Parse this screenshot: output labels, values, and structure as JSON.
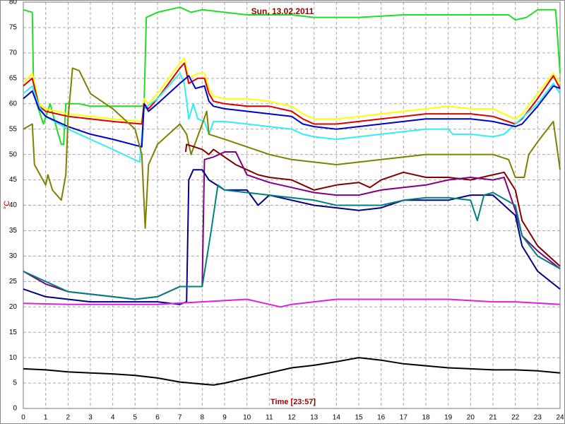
{
  "chart_data": {
    "type": "line",
    "title": "Sun, 13.02.2011",
    "x_label": "Time [23:57]",
    "y_label": "°C",
    "xlim": [
      0,
      24
    ],
    "ylim": [
      0,
      80
    ],
    "xticks": [
      0,
      1,
      2,
      3,
      4,
      5,
      6,
      7,
      8,
      9,
      10,
      11,
      12,
      13,
      14,
      15,
      16,
      17,
      18,
      19,
      20,
      21,
      22,
      23,
      24
    ],
    "yticks": [
      0,
      5,
      10,
      15,
      20,
      25,
      30,
      35,
      40,
      45,
      50,
      55,
      60,
      65,
      70,
      75,
      80
    ],
    "grid": true,
    "series": [
      {
        "color": "#22dd22",
        "x": [
          0,
          0.4,
          0.45,
          0.6,
          0.9,
          1.2,
          1.5,
          1.7,
          1.8,
          1.9,
          2.5,
          3,
          4,
          5.3,
          5.4,
          5.5,
          6,
          7,
          7.5,
          8,
          9,
          10,
          12,
          13,
          15,
          17,
          19,
          21,
          21.7,
          22,
          22.5,
          23,
          23.8,
          24
        ],
        "values": [
          78.5,
          78,
          65,
          60,
          56,
          60,
          55,
          52,
          52,
          60,
          60,
          59.5,
          59.5,
          59.5,
          60,
          77,
          78,
          79,
          78,
          78.5,
          78,
          77.5,
          77.5,
          77,
          77,
          77.5,
          77.5,
          77.5,
          77.5,
          76.5,
          77,
          78.5,
          78.5,
          66
        ]
      },
      {
        "color": "#ffff00",
        "x": [
          0,
          0.4,
          0.7,
          1,
          2,
          3,
          4,
          5.3,
          5.4,
          5.6,
          6,
          7,
          7.2,
          7.4,
          7.8,
          8.1,
          8.3,
          8.5,
          9,
          10,
          11,
          12,
          12.5,
          13,
          14,
          15,
          16,
          17,
          18,
          19,
          20,
          21,
          22,
          22.3,
          23,
          23.7,
          24
        ],
        "values": [
          64,
          66,
          60,
          59,
          58,
          57.5,
          57,
          56.5,
          61,
          60,
          62,
          68,
          69,
          65,
          66,
          66,
          63,
          61.5,
          61,
          61,
          60.5,
          59.5,
          58,
          57,
          57,
          57.5,
          58,
          58.5,
          59,
          59.5,
          59,
          59,
          57,
          58,
          62,
          66,
          64
        ]
      },
      {
        "color": "#dd0000",
        "x": [
          0,
          0.4,
          0.7,
          1,
          2,
          3,
          4,
          5.3,
          5.4,
          5.6,
          6,
          7,
          7.2,
          7.4,
          7.8,
          8.1,
          8.3,
          8.5,
          9,
          10,
          11,
          12,
          12.5,
          13,
          14,
          15,
          16,
          17,
          18,
          19,
          20,
          21,
          22,
          22.3,
          23,
          23.7,
          24
        ],
        "values": [
          63.5,
          65,
          59.5,
          58.5,
          57.5,
          57,
          56.5,
          56,
          60,
          59,
          61,
          67,
          68,
          64,
          65,
          65,
          62,
          60.5,
          60,
          59.5,
          59.5,
          58.5,
          57,
          56,
          56,
          56.5,
          57,
          57.5,
          58,
          58,
          58,
          57.5,
          56,
          57,
          61,
          65.5,
          63
        ]
      },
      {
        "color": "#33eeee",
        "x": [
          0,
          0.4,
          0.7,
          1,
          2,
          3,
          4,
          5.2,
          5.4,
          6,
          7,
          7.2,
          7.4,
          7.6,
          7.8,
          8.1,
          8.3,
          8.5,
          9,
          10,
          11,
          12,
          12.5,
          13,
          14,
          15,
          16,
          17,
          18,
          19,
          19.2,
          20,
          21,
          21.5,
          22,
          23,
          23.7,
          24
        ],
        "values": [
          62,
          63.5,
          59.5,
          57.5,
          55,
          53,
          51,
          48.5,
          59,
          61,
          66,
          64,
          57,
          60,
          57,
          56.5,
          54,
          56.5,
          56.5,
          56,
          55.5,
          55,
          54,
          53.5,
          53,
          53.5,
          54,
          54.5,
          55,
          55,
          54,
          54,
          53.5,
          54,
          56,
          60,
          64,
          62
        ]
      },
      {
        "color": "#0000cc",
        "x": [
          0,
          0.4,
          0.7,
          1,
          2,
          3,
          4,
          5.3,
          5.4,
          5.6,
          6,
          7,
          7.4,
          7.7,
          8.1,
          8.3,
          8.5,
          9,
          10,
          11,
          12,
          12.5,
          13,
          14,
          15,
          16,
          17,
          18,
          19,
          20,
          21,
          22,
          22.3,
          23,
          23.7,
          24
        ],
        "values": [
          61,
          62.5,
          59,
          57.5,
          55.5,
          54,
          53,
          51.5,
          60,
          58.5,
          60,
          64,
          65.5,
          63,
          63.5,
          60.5,
          59.5,
          59,
          58.5,
          58,
          57.5,
          56,
          55.5,
          55,
          55.5,
          56,
          56.5,
          57,
          57,
          57,
          56.5,
          55.5,
          56,
          59.5,
          63.5,
          63
        ]
      },
      {
        "color": "#808000",
        "x": [
          0,
          0.4,
          0.5,
          1,
          1.1,
          1.3,
          1.7,
          1.9,
          2,
          2.2,
          2.5,
          3,
          4,
          5,
          5.3,
          5.45,
          5.6,
          6,
          7,
          7.3,
          7.5,
          8,
          8.2,
          8.3,
          9,
          10,
          11,
          12,
          13,
          14,
          15,
          16,
          17,
          18,
          19,
          20,
          21,
          21.7,
          22,
          22.4,
          22.6,
          23,
          23.7,
          24
        ],
        "values": [
          55,
          56,
          48,
          44,
          46,
          43,
          41,
          46,
          57,
          67,
          66.5,
          62,
          59,
          55,
          50,
          35.5,
          48,
          52,
          56,
          54,
          50,
          56,
          58.5,
          54,
          53,
          51.5,
          50,
          49,
          48.5,
          48,
          48.5,
          49,
          49.5,
          50,
          50,
          50,
          50,
          49,
          45.5,
          45.5,
          50,
          52.5,
          56.5,
          47
        ]
      },
      {
        "color": "#800000",
        "x": [
          7.26,
          7.3,
          8,
          8.3,
          8.5,
          9,
          9.5,
          10,
          10.5,
          11,
          12,
          12.5,
          13,
          14,
          15,
          15.5,
          16,
          17,
          18,
          19,
          20,
          21,
          21.5,
          22,
          22.3,
          23,
          24
        ],
        "values": [
          50.5,
          52,
          51,
          50,
          51,
          49.5,
          48,
          47,
          46,
          45.5,
          45,
          44,
          43,
          44,
          44.5,
          43.5,
          45,
          46.5,
          45.5,
          45.5,
          45,
          46,
          46.5,
          43,
          37,
          32,
          28
        ]
      },
      {
        "color": "#800080",
        "x": [
          0,
          1,
          2,
          3,
          4,
          5,
          6,
          7,
          8,
          8.1,
          8.5,
          9,
          9.5,
          10,
          11,
          12,
          13,
          14,
          15,
          16,
          17,
          18,
          19,
          20,
          21,
          21.5,
          22,
          22.3,
          23,
          24
        ],
        "values": [
          27,
          24.5,
          23,
          22.5,
          22,
          21.5,
          22,
          24,
          24,
          49,
          49.5,
          50.5,
          50.5,
          46,
          44.5,
          43.5,
          42.5,
          42,
          42,
          43,
          43.5,
          44,
          45,
          45.5,
          45,
          45.5,
          39,
          34,
          31,
          27.5
        ]
      },
      {
        "color": "#000080",
        "x": [
          0,
          1,
          2,
          3,
          4,
          5,
          6,
          7,
          7.3,
          7.4,
          7.6,
          8,
          8.3,
          9,
          10,
          10.5,
          11,
          12,
          13,
          14,
          15,
          16,
          17,
          18,
          19,
          20,
          21,
          22,
          22.3,
          23,
          24
        ],
        "values": [
          23.5,
          22,
          21.5,
          21,
          21,
          21,
          21,
          20.5,
          21,
          45,
          47,
          47,
          45,
          43,
          43,
          40,
          42,
          41,
          40,
          39.5,
          39,
          39.5,
          41,
          41,
          41,
          42,
          42,
          38,
          32,
          27,
          23.5
        ]
      },
      {
        "color": "#008080",
        "x": [
          0,
          1,
          2,
          3,
          4,
          5,
          6,
          7,
          8,
          8.4,
          8.7,
          9,
          10,
          11,
          12,
          13,
          14,
          15,
          16,
          17,
          18,
          19,
          20,
          20.3,
          20.6,
          21,
          22,
          22.3,
          23,
          24
        ],
        "values": [
          27,
          25,
          23,
          22.5,
          22,
          21.5,
          22,
          24,
          24,
          35,
          44,
          43,
          42.5,
          42,
          41.5,
          41,
          40,
          40,
          40,
          41,
          41.5,
          41.5,
          41,
          37,
          42,
          42.5,
          40,
          34,
          30,
          27.5
        ]
      },
      {
        "color": "#dd22dd",
        "x": [
          0,
          2,
          4,
          6,
          8,
          10,
          11,
          11.5,
          12,
          13,
          14,
          15,
          17,
          19,
          21,
          22,
          24
        ],
        "values": [
          20.7,
          20.5,
          20.5,
          20.5,
          21,
          21.5,
          20.5,
          20,
          20.5,
          21,
          21.5,
          21.5,
          21.5,
          21.5,
          21,
          21,
          20.5
        ]
      },
      {
        "color": "#000000",
        "x": [
          0,
          1,
          2,
          3,
          4,
          5,
          6,
          7,
          8,
          8.5,
          9,
          10,
          11,
          12,
          13,
          14,
          15,
          16,
          17,
          18,
          19,
          20,
          21,
          22,
          23,
          24
        ],
        "values": [
          7.8,
          7.6,
          7.2,
          7,
          6.8,
          6.5,
          6,
          5.2,
          4.8,
          4.6,
          5,
          6,
          7,
          8,
          8.5,
          9.2,
          10,
          9.5,
          8.8,
          8.4,
          8,
          7.8,
          7.6,
          7.6,
          7.4,
          7
        ]
      }
    ]
  }
}
